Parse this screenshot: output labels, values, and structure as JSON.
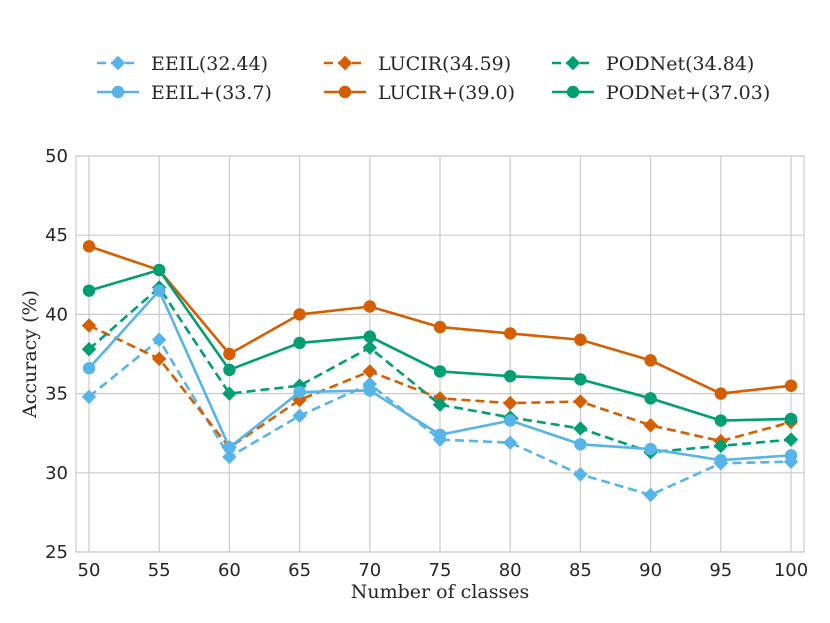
{
  "chart_data": {
    "type": "line",
    "title": "",
    "xlabel": "Number of classes",
    "ylabel": "Accuracy (%)",
    "x": [
      50,
      55,
      60,
      65,
      70,
      75,
      80,
      85,
      90,
      95,
      100
    ],
    "x_ticks": [
      "50",
      "55",
      "60",
      "65",
      "70",
      "75",
      "80",
      "85",
      "90",
      "95",
      "100"
    ],
    "ylim": [
      25,
      50
    ],
    "y_ticks": [
      "25",
      "30",
      "35",
      "40",
      "45",
      "50"
    ],
    "y_tick_values": [
      25,
      30,
      35,
      40,
      45,
      50
    ],
    "grid": true,
    "legend_position": "top",
    "series": [
      {
        "name": "EEIL(32.44)",
        "color": "#56b4e9",
        "dash": "dashed",
        "marker": "diamond",
        "values": [
          34.8,
          38.4,
          31.0,
          33.6,
          35.6,
          32.1,
          31.9,
          29.9,
          28.6,
          30.6,
          30.7
        ]
      },
      {
        "name": "LUCIR(34.59)",
        "color": "#d55e00",
        "dash": "dashed",
        "marker": "diamond",
        "values": [
          39.3,
          37.2,
          31.6,
          34.6,
          36.4,
          34.7,
          34.4,
          34.5,
          33.0,
          32.0,
          33.2
        ]
      },
      {
        "name": "PODNet(34.84)",
        "color": "#009e73",
        "dash": "dashed",
        "marker": "diamond",
        "values": [
          37.8,
          41.7,
          35.0,
          35.5,
          37.9,
          34.3,
          33.5,
          32.8,
          31.3,
          31.7,
          32.1
        ]
      },
      {
        "name": "EEIL+(33.7)",
        "color": "#56b4e9",
        "dash": "solid",
        "marker": "circle",
        "values": [
          36.6,
          41.5,
          31.6,
          35.1,
          35.2,
          32.4,
          33.3,
          31.8,
          31.5,
          30.8,
          31.1
        ]
      },
      {
        "name": "LUCIR+(39.0)",
        "color": "#d55e00",
        "dash": "solid",
        "marker": "circle",
        "values": [
          44.3,
          42.8,
          37.5,
          40.0,
          40.5,
          39.2,
          38.8,
          38.4,
          37.1,
          35.0,
          35.5
        ]
      },
      {
        "name": "PODNet+(37.03)",
        "color": "#009e73",
        "dash": "solid",
        "marker": "circle",
        "values": [
          41.5,
          42.8,
          36.5,
          38.2,
          38.6,
          36.4,
          36.1,
          35.9,
          34.7,
          33.3,
          33.4
        ]
      }
    ]
  }
}
